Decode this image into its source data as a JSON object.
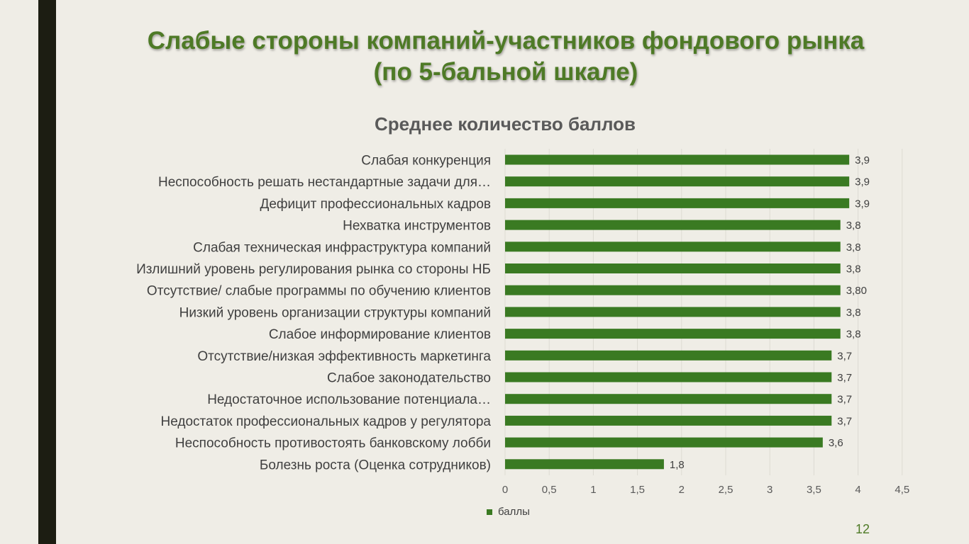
{
  "slide": {
    "title_line1": "Слабые стороны компаний-участников фондового рынка",
    "title_line2": "(по 5-бальной шкале)",
    "page_number": "12"
  },
  "colors": {
    "bar": "#3a7a22",
    "title": "#4e7a26",
    "background": "#efede6",
    "left_bar": "#1c1d12"
  },
  "chart_data": {
    "type": "bar",
    "orientation": "horizontal",
    "title": "Среднее количество баллов",
    "categories": [
      "Слабая конкуренция",
      "Неспособность решать нестандартные задачи для…",
      "Дефицит профессиональных кадров",
      "Нехватка инструментов",
      "Слабая техническая инфраструктура компаний",
      "Излишний уровень регулирования рынка со стороны НБ",
      "Отсутствие/ слабые программы по обучению клиентов",
      "Низкий уровень организации структуры компаний",
      "Слабое информирование клиентов",
      "Отсутствие/низкая  эффективность маркетинга",
      "Слабое законодательство",
      "Недостаточное использование потенциала…",
      "Недостаток профессиональных кадров у регулятора",
      "Неспособность противостоять банковскому лобби",
      "Болезнь роста (Оценка сотрудников)"
    ],
    "series": [
      {
        "name": "баллы",
        "values": [
          3.9,
          3.9,
          3.9,
          3.8,
          3.8,
          3.8,
          3.8,
          3.8,
          3.8,
          3.7,
          3.7,
          3.7,
          3.7,
          3.6,
          1.8
        ],
        "value_labels": [
          "3,9",
          "3,9",
          "3,9",
          "3,8",
          "3,8",
          "3,8",
          "3,80",
          "3,8",
          "3,8",
          "3,7",
          "3,7",
          "3,7",
          "3,7",
          "3,6",
          "1,8"
        ]
      }
    ],
    "xlim": [
      0,
      4.5
    ],
    "x_ticks": [
      0,
      0.5,
      1,
      1.5,
      2,
      2.5,
      3,
      3.5,
      4,
      4.5
    ],
    "x_tick_labels": [
      "0",
      "0,5",
      "1",
      "1,5",
      "2",
      "2,5",
      "3",
      "3,5",
      "4",
      "4,5"
    ],
    "grid": true,
    "legend_position": "bottom-left"
  }
}
